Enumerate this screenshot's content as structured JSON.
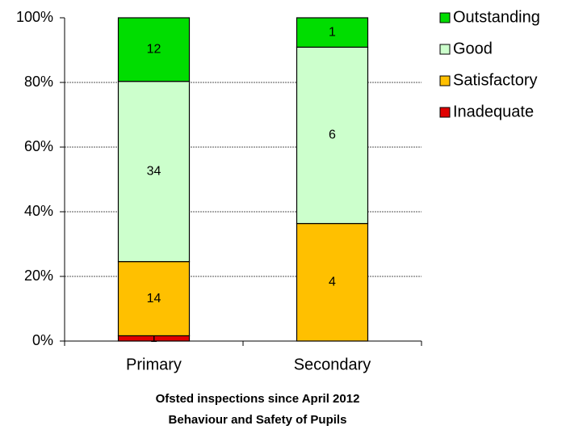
{
  "chart_data": {
    "type": "bar",
    "stacking": "percent",
    "title": "Ofsted inspections since April 2012",
    "subtitle": "Behaviour and Safety of Pupils",
    "categories": [
      "Primary",
      "Secondary"
    ],
    "series": [
      {
        "name": "Inadequate",
        "color": "#e00000",
        "values": [
          1,
          0
        ]
      },
      {
        "name": "Satisfactory",
        "color": "#ffc000",
        "values": [
          14,
          4
        ]
      },
      {
        "name": "Good",
        "color": "#ccffcc",
        "values": [
          34,
          6
        ]
      },
      {
        "name": "Outstanding",
        "color": "#00dd00",
        "values": [
          12,
          1
        ]
      }
    ],
    "ylim": [
      0,
      100
    ],
    "yticks": [
      {
        "value": 0,
        "label": "0%"
      },
      {
        "value": 20,
        "label": "20%"
      },
      {
        "value": 40,
        "label": "40%"
      },
      {
        "value": 60,
        "label": "60%"
      },
      {
        "value": 80,
        "label": "80%"
      },
      {
        "value": 100,
        "label": "100%"
      }
    ],
    "grid": true,
    "legend": "top-right"
  }
}
